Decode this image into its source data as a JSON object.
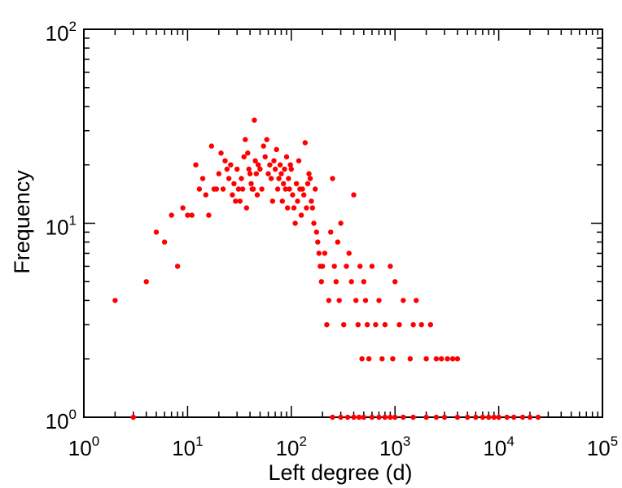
{
  "chart_data": {
    "type": "scatter",
    "xlabel": "Left degree (d)",
    "ylabel": "Frequency",
    "x_scale": "log",
    "y_scale": "log",
    "xlim": [
      1,
      100000
    ],
    "ylim": [
      1,
      100
    ],
    "grid": false,
    "marker_color": "#ff0000",
    "x_tick_labels": [
      {
        "base": "10",
        "exp": "0"
      },
      {
        "base": "10",
        "exp": "1"
      },
      {
        "base": "10",
        "exp": "2"
      },
      {
        "base": "10",
        "exp": "3"
      },
      {
        "base": "10",
        "exp": "4"
      },
      {
        "base": "10",
        "exp": "5"
      }
    ],
    "y_tick_labels": [
      {
        "base": "10",
        "exp": "0"
      },
      {
        "base": "10",
        "exp": "1"
      },
      {
        "base": "10",
        "exp": "2"
      }
    ],
    "points": [
      [
        2,
        4
      ],
      [
        3,
        1
      ],
      [
        4,
        5
      ],
      [
        5,
        9
      ],
      [
        6,
        8
      ],
      [
        7,
        11
      ],
      [
        8,
        6
      ],
      [
        9,
        12
      ],
      [
        10,
        11
      ],
      [
        11,
        11
      ],
      [
        12,
        20
      ],
      [
        13,
        15
      ],
      [
        14,
        17
      ],
      [
        15,
        14
      ],
      [
        16,
        11
      ],
      [
        17,
        25
      ],
      [
        18,
        15
      ],
      [
        19,
        15
      ],
      [
        20,
        18
      ],
      [
        21,
        23
      ],
      [
        22,
        15
      ],
      [
        23,
        21
      ],
      [
        24,
        19
      ],
      [
        25,
        17
      ],
      [
        26,
        20
      ],
      [
        27,
        14
      ],
      [
        28,
        16
      ],
      [
        29,
        13
      ],
      [
        30,
        19
      ],
      [
        31,
        15
      ],
      [
        32,
        13
      ],
      [
        33,
        17
      ],
      [
        34,
        15
      ],
      [
        35,
        22
      ],
      [
        36,
        27
      ],
      [
        37,
        12
      ],
      [
        38,
        23
      ],
      [
        39,
        19
      ],
      [
        40,
        18
      ],
      [
        41,
        16
      ],
      [
        42,
        15
      ],
      [
        43,
        15
      ],
      [
        44,
        34
      ],
      [
        45,
        21
      ],
      [
        46,
        18
      ],
      [
        47,
        14
      ],
      [
        48,
        20
      ],
      [
        50,
        19
      ],
      [
        52,
        15
      ],
      [
        54,
        25
      ],
      [
        56,
        22
      ],
      [
        58,
        27
      ],
      [
        60,
        18
      ],
      [
        62,
        20
      ],
      [
        64,
        17
      ],
      [
        66,
        13
      ],
      [
        68,
        21
      ],
      [
        70,
        19
      ],
      [
        72,
        24
      ],
      [
        74,
        15
      ],
      [
        76,
        17
      ],
      [
        78,
        20
      ],
      [
        80,
        18
      ],
      [
        82,
        13
      ],
      [
        84,
        16
      ],
      [
        86,
        19
      ],
      [
        88,
        15
      ],
      [
        90,
        22
      ],
      [
        92,
        12
      ],
      [
        94,
        17
      ],
      [
        96,
        15
      ],
      [
        98,
        20
      ],
      [
        100,
        19
      ],
      [
        103,
        14
      ],
      [
        106,
        12
      ],
      [
        109,
        10
      ],
      [
        112,
        16
      ],
      [
        115,
        13
      ],
      [
        118,
        21
      ],
      [
        121,
        15
      ],
      [
        125,
        11
      ],
      [
        128,
        15
      ],
      [
        132,
        14
      ],
      [
        136,
        26
      ],
      [
        140,
        12
      ],
      [
        144,
        16
      ],
      [
        148,
        18
      ],
      [
        152,
        17
      ],
      [
        156,
        13
      ],
      [
        160,
        12
      ],
      [
        165,
        10
      ],
      [
        170,
        15
      ],
      [
        175,
        9
      ],
      [
        180,
        8
      ],
      [
        185,
        7
      ],
      [
        190,
        6
      ],
      [
        195,
        5
      ],
      [
        200,
        6
      ],
      [
        210,
        7
      ],
      [
        220,
        3
      ],
      [
        230,
        4
      ],
      [
        240,
        9
      ],
      [
        250,
        17
      ],
      [
        260,
        6
      ],
      [
        270,
        5
      ],
      [
        280,
        8
      ],
      [
        290,
        4
      ],
      [
        300,
        10
      ],
      [
        320,
        3
      ],
      [
        340,
        6
      ],
      [
        360,
        7
      ],
      [
        380,
        5
      ],
      [
        400,
        14
      ],
      [
        420,
        4
      ],
      [
        440,
        3
      ],
      [
        460,
        6
      ],
      [
        480,
        2
      ],
      [
        500,
        5
      ],
      [
        520,
        4
      ],
      [
        540,
        3
      ],
      [
        560,
        2
      ],
      [
        600,
        6
      ],
      [
        650,
        3
      ],
      [
        700,
        4
      ],
      [
        750,
        2
      ],
      [
        800,
        3
      ],
      [
        900,
        6
      ],
      [
        950,
        2
      ],
      [
        1000,
        5
      ],
      [
        1100,
        3
      ],
      [
        1200,
        4
      ],
      [
        1400,
        2
      ],
      [
        1500,
        3
      ],
      [
        1600,
        4
      ],
      [
        1800,
        3
      ],
      [
        2000,
        2
      ],
      [
        2200,
        3
      ],
      [
        2500,
        2
      ],
      [
        2800,
        2
      ],
      [
        3200,
        2
      ],
      [
        3600,
        2
      ],
      [
        4000,
        2
      ],
      [
        250,
        1
      ],
      [
        300,
        1
      ],
      [
        350,
        1
      ],
      [
        400,
        1
      ],
      [
        450,
        1
      ],
      [
        500,
        1
      ],
      [
        600,
        1
      ],
      [
        700,
        1
      ],
      [
        800,
        1
      ],
      [
        900,
        1
      ],
      [
        1000,
        1
      ],
      [
        1200,
        1
      ],
      [
        1500,
        1
      ],
      [
        2000,
        1
      ],
      [
        2500,
        1
      ],
      [
        3000,
        1
      ],
      [
        4000,
        1
      ],
      [
        5000,
        1
      ],
      [
        6000,
        1
      ],
      [
        7000,
        1
      ],
      [
        8000,
        1
      ],
      [
        9000,
        1
      ],
      [
        10000,
        1
      ],
      [
        12000,
        1
      ],
      [
        14000,
        1
      ],
      [
        17000,
        1
      ],
      [
        20000,
        1
      ],
      [
        24000,
        1
      ]
    ]
  }
}
